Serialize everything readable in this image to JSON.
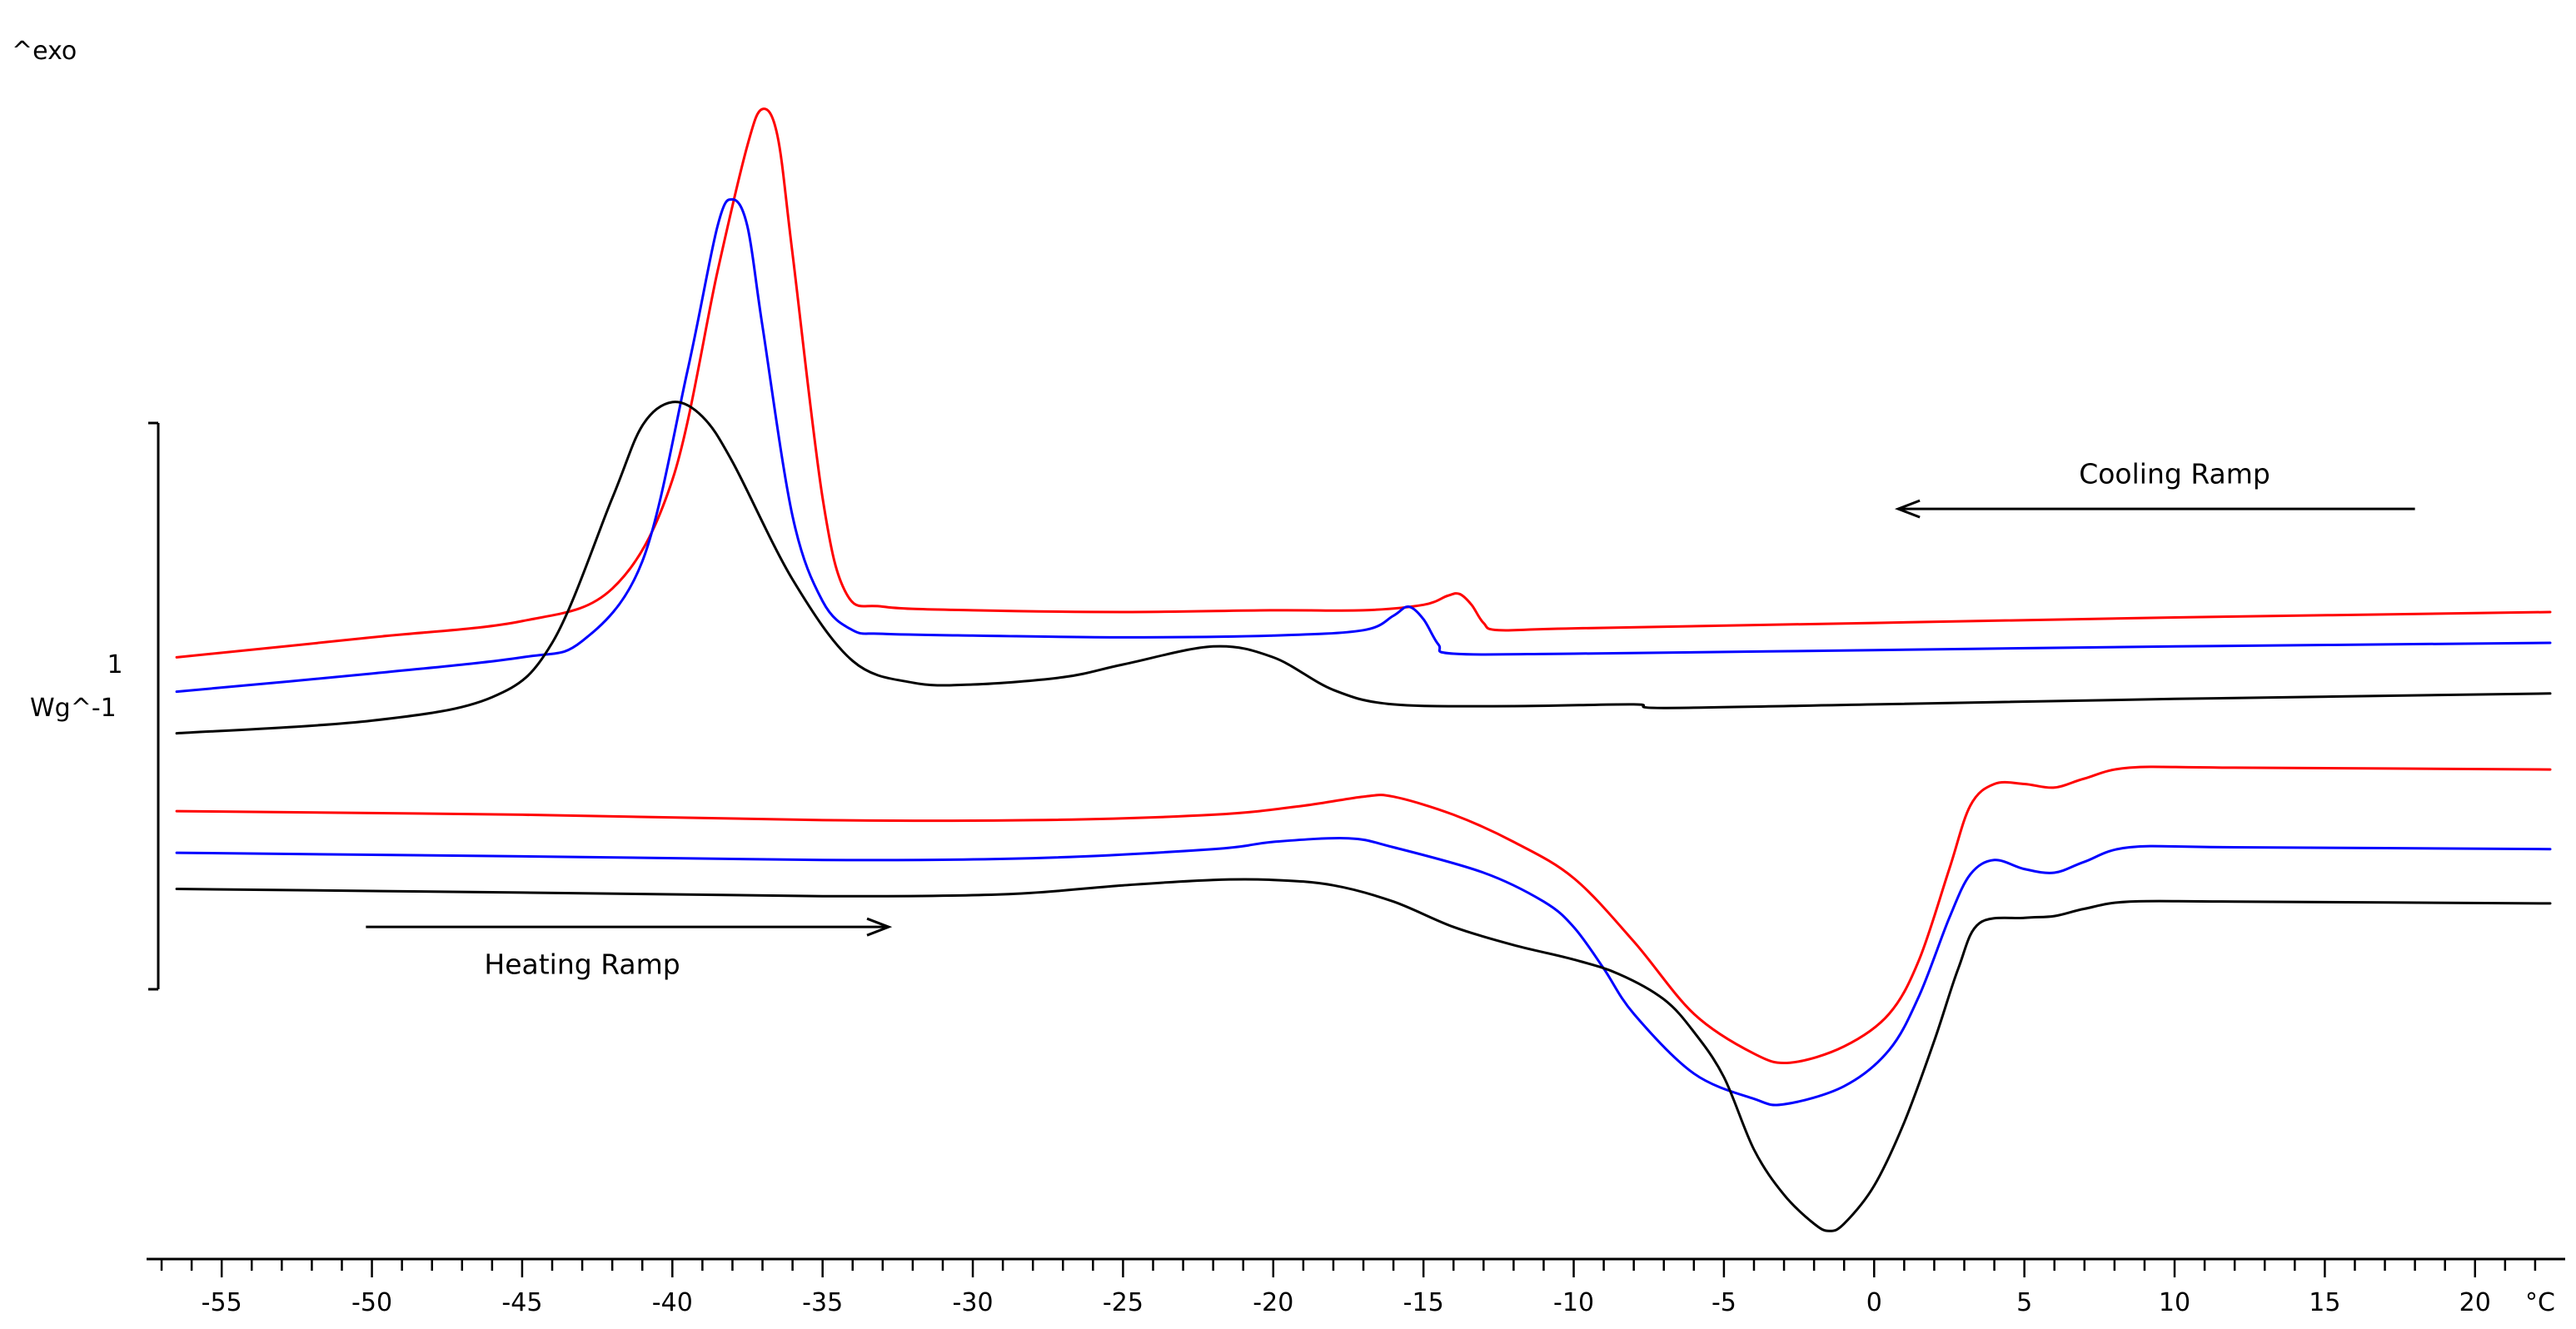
{
  "chart_data": {
    "type": "line",
    "title": "",
    "y_axis_top_label": "^exo",
    "scale_bar": {
      "value": "1",
      "unit": "Wg^-1"
    },
    "x_unit": "°C",
    "xlim": [
      -57.5,
      23
    ],
    "ylim": [
      -2.9,
      3.45
    ],
    "x_ticks_major": [
      -55,
      -50,
      -45,
      -40,
      -35,
      -30,
      -25,
      -20,
      -15,
      -10,
      -5,
      0,
      5,
      10,
      15,
      20
    ],
    "x_tick_labels": [
      "-55",
      "-50",
      "-45",
      "-40",
      "-35",
      "-30",
      "-25",
      "-20",
      "-15",
      "-10",
      "-5",
      "0",
      "5",
      "10",
      "15",
      "20"
    ],
    "annotations": [
      {
        "text": "Cooling Ramp",
        "arrow": "left",
        "x_from": 18,
        "x_to": 0.8,
        "y": 1.19,
        "label_x": 10,
        "label_y": 1.33
      },
      {
        "text": "Heating Ramp",
        "arrow": "right",
        "x_from": -50.2,
        "x_to": -32.8,
        "y": -1.12,
        "label_x": -43,
        "label_y": -1.38
      }
    ],
    "series": [
      {
        "name": "cooling-red",
        "ramp": "cooling",
        "color": "#ff0000",
        "x": [
          -56.5,
          -50,
          -45,
          -42,
          -40,
          -38.5,
          -37.5,
          -37,
          -36.5,
          -36,
          -35,
          -34.2,
          -33,
          -30,
          -25,
          -20,
          -17,
          -15,
          -14.2,
          -13.8,
          -13.4,
          -13,
          -12.5,
          -10,
          0,
          10,
          22.5
        ],
        "y": [
          0.37,
          0.48,
          0.57,
          0.75,
          1.35,
          2.5,
          3.2,
          3.4,
          3.25,
          2.6,
          1.25,
          0.72,
          0.65,
          0.63,
          0.62,
          0.63,
          0.63,
          0.66,
          0.71,
          0.72,
          0.66,
          0.56,
          0.52,
          0.53,
          0.56,
          0.59,
          0.62
        ]
      },
      {
        "name": "cooling-blue",
        "ramp": "cooling",
        "color": "#0000ff",
        "x": [
          -56.5,
          -50,
          -45,
          -43,
          -41,
          -39.5,
          -38.5,
          -38,
          -37.5,
          -37,
          -36,
          -35,
          -34,
          -33,
          -30,
          -25,
          -20,
          -17,
          -16,
          -15.5,
          -15,
          -14.5,
          -14,
          -10,
          0,
          10,
          22.5
        ],
        "y": [
          0.18,
          0.28,
          0.37,
          0.46,
          0.9,
          1.95,
          2.75,
          2.9,
          2.75,
          2.2,
          1.15,
          0.68,
          0.52,
          0.5,
          0.49,
          0.48,
          0.49,
          0.52,
          0.6,
          0.65,
          0.58,
          0.44,
          0.39,
          0.39,
          0.41,
          0.43,
          0.45
        ]
      },
      {
        "name": "cooling-black",
        "ramp": "cooling",
        "color": "#000000",
        "x": [
          -56.5,
          -50,
          -46,
          -44,
          -42,
          -41,
          -40,
          -39,
          -38,
          -36,
          -34,
          -32,
          -30,
          -27,
          -25,
          -22,
          -20,
          -18,
          -16,
          -12,
          -8,
          -7,
          0,
          10,
          22.5
        ],
        "y": [
          -0.05,
          0.02,
          0.15,
          0.45,
          1.25,
          1.65,
          1.78,
          1.7,
          1.45,
          0.8,
          0.35,
          0.23,
          0.22,
          0.26,
          0.33,
          0.43,
          0.37,
          0.19,
          0.11,
          0.1,
          0.11,
          0.09,
          0.11,
          0.14,
          0.17
        ]
      },
      {
        "name": "heating-red",
        "ramp": "heating",
        "color": "#ff0000",
        "x": [
          -56.5,
          -45,
          -35,
          -28,
          -22,
          -19,
          -17,
          -16,
          -14,
          -12,
          -10,
          -8,
          -6,
          -4,
          -2.8,
          -1,
          0.5,
          1.5,
          2.5,
          3.2,
          4,
          5,
          6,
          7,
          8.5,
          12,
          22.5
        ],
        "y": [
          -0.48,
          -0.5,
          -0.53,
          -0.53,
          -0.5,
          -0.45,
          -0.4,
          -0.4,
          -0.5,
          -0.65,
          -0.85,
          -1.2,
          -1.6,
          -1.82,
          -1.87,
          -1.78,
          -1.6,
          -1.3,
          -0.8,
          -0.45,
          -0.33,
          -0.33,
          -0.35,
          -0.3,
          -0.24,
          -0.24,
          -0.25
        ]
      },
      {
        "name": "heating-blue",
        "ramp": "heating",
        "color": "#0000ff",
        "x": [
          -56.5,
          -45,
          -35,
          -28,
          -22,
          -20,
          -17.5,
          -16,
          -13,
          -11,
          -10,
          -9,
          -8,
          -6,
          -4,
          -3,
          -1,
          0.5,
          1.5,
          2.5,
          3.2,
          4,
          5,
          6,
          7,
          8.5,
          12,
          22.5
        ],
        "y": [
          -0.71,
          -0.73,
          -0.75,
          -0.74,
          -0.69,
          -0.65,
          -0.63,
          -0.68,
          -0.82,
          -0.98,
          -1.12,
          -1.35,
          -1.6,
          -1.93,
          -2.07,
          -2.1,
          -2.0,
          -1.8,
          -1.5,
          -1.07,
          -0.83,
          -0.75,
          -0.8,
          -0.82,
          -0.76,
          -0.68,
          -0.68,
          -0.69
        ]
      },
      {
        "name": "heating-black",
        "ramp": "heating",
        "color": "#000000",
        "x": [
          -56.5,
          -45,
          -35,
          -29,
          -25,
          -22,
          -20,
          -18,
          -16,
          -14,
          -12,
          -10,
          -8.5,
          -7,
          -6,
          -5,
          -4,
          -3,
          -2,
          -1.5,
          -1,
          0,
          1,
          2,
          2.8,
          3.5,
          5,
          6,
          7,
          8.5,
          12,
          22.5
        ],
        "y": [
          -0.91,
          -0.93,
          -0.95,
          -0.94,
          -0.89,
          -0.86,
          -0.86,
          -0.89,
          -0.98,
          -1.12,
          -1.22,
          -1.3,
          -1.38,
          -1.52,
          -1.7,
          -1.95,
          -2.35,
          -2.6,
          -2.76,
          -2.8,
          -2.76,
          -2.55,
          -2.2,
          -1.75,
          -1.35,
          -1.1,
          -1.07,
          -1.06,
          -1.02,
          -0.98,
          -0.98,
          -0.99
        ]
      }
    ]
  }
}
